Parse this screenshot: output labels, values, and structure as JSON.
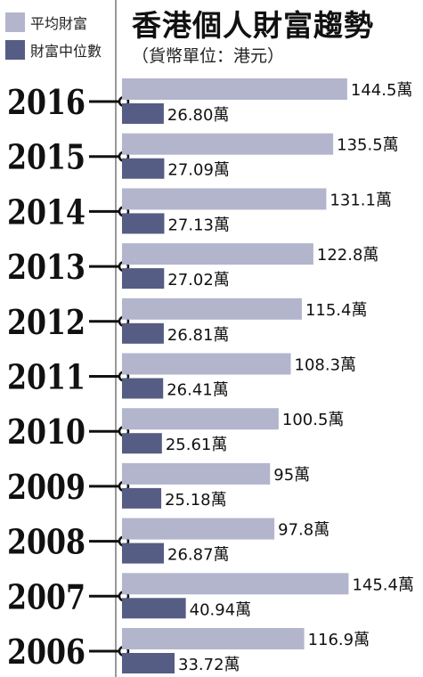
{
  "chart_data": {
    "type": "bar",
    "orientation": "horizontal",
    "title": "香港個人財富趨勢",
    "subtitle": "（貨幣單位：港元）",
    "categories": [
      "2016",
      "2015",
      "2014",
      "2013",
      "2012",
      "2011",
      "2010",
      "2009",
      "2008",
      "2007",
      "2006"
    ],
    "series": [
      {
        "name": "平均財富",
        "values": [
          144.5,
          135.5,
          131.1,
          122.8,
          115.4,
          108.3,
          100.5,
          95,
          97.8,
          145.4,
          116.9
        ],
        "labels": [
          "144.5萬",
          "135.5萬",
          "131.1萬",
          "122.8萬",
          "115.4萬",
          "108.3萬",
          "100.5萬",
          "95萬",
          "97.8萬",
          "145.4萬",
          "116.9萬"
        ],
        "color": "#b3b5cd"
      },
      {
        "name": "財富中位數",
        "values": [
          26.8,
          27.09,
          27.13,
          27.02,
          26.81,
          26.41,
          25.61,
          25.18,
          26.87,
          40.94,
          33.72
        ],
        "labels": [
          "26.80萬",
          "27.09萬",
          "27.13萬",
          "27.02萬",
          "26.81萬",
          "26.41萬",
          "25.61萬",
          "25.18萬",
          "26.87萬",
          "40.94萬",
          "33.72萬"
        ],
        "color": "#555d84"
      }
    ],
    "legend": "top-left",
    "grid": false
  }
}
